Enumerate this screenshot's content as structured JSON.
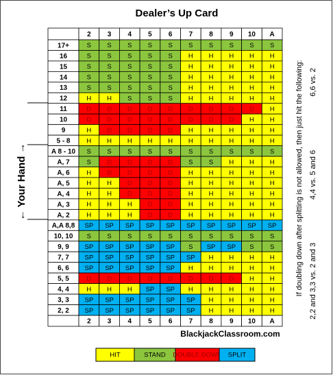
{
  "title": "Dealer’s Up Card",
  "axis_label": "← Your Hand →",
  "columns": [
    "2",
    "3",
    "4",
    "5",
    "6",
    "7",
    "8",
    "9",
    "10",
    "A"
  ],
  "rows": [
    {
      "hand": "17+",
      "cells": [
        "S",
        "S",
        "S",
        "S",
        "S",
        "S",
        "S",
        "S",
        "S",
        "S"
      ]
    },
    {
      "hand": "16",
      "cells": [
        "S",
        "S",
        "S",
        "S",
        "S",
        "H",
        "H",
        "H",
        "H",
        "H"
      ]
    },
    {
      "hand": "15",
      "cells": [
        "S",
        "S",
        "S",
        "S",
        "S",
        "H",
        "H",
        "H",
        "H",
        "H"
      ]
    },
    {
      "hand": "14",
      "cells": [
        "S",
        "S",
        "S",
        "S",
        "S",
        "H",
        "H",
        "H",
        "H",
        "H"
      ]
    },
    {
      "hand": "13",
      "cells": [
        "S",
        "S",
        "S",
        "S",
        "S",
        "H",
        "H",
        "H",
        "H",
        "H"
      ]
    },
    {
      "hand": "12",
      "cells": [
        "H",
        "H",
        "S",
        "S",
        "S",
        "H",
        "H",
        "H",
        "H",
        "H"
      ]
    },
    {
      "hand": "11",
      "cells": [
        "D",
        "D",
        "D",
        "D",
        "D",
        "D",
        "D",
        "D",
        "D",
        "H"
      ]
    },
    {
      "hand": "10",
      "cells": [
        "D",
        "D",
        "D",
        "D",
        "D",
        "D",
        "D",
        "D",
        "H",
        "H"
      ]
    },
    {
      "hand": "9",
      "cells": [
        "H",
        "D",
        "D",
        "D",
        "D",
        "H",
        "H",
        "H",
        "H",
        "H"
      ]
    },
    {
      "hand": "5 - 8",
      "cells": [
        "H",
        "H",
        "H",
        "H",
        "H",
        "H",
        "H",
        "H",
        "H",
        "H"
      ]
    },
    {
      "hand": "A 8 - 10",
      "cells": [
        "S",
        "S",
        "S",
        "S",
        "S",
        "S",
        "S",
        "S",
        "S",
        "S"
      ]
    },
    {
      "hand": "A, 7",
      "cells": [
        "S",
        "D",
        "D",
        "D",
        "D",
        "S",
        "S",
        "H",
        "H",
        "H"
      ]
    },
    {
      "hand": "A, 6",
      "cells": [
        "H",
        "D",
        "D",
        "D",
        "D",
        "H",
        "H",
        "H",
        "H",
        "H"
      ]
    },
    {
      "hand": "A, 5",
      "cells": [
        "H",
        "H",
        "D",
        "D",
        "D",
        "H",
        "H",
        "H",
        "H",
        "H"
      ]
    },
    {
      "hand": "A, 4",
      "cells": [
        "H",
        "H",
        "D",
        "D",
        "D",
        "H",
        "H",
        "H",
        "H",
        "H"
      ]
    },
    {
      "hand": "A, 3",
      "cells": [
        "H",
        "H",
        "H",
        "D",
        "D",
        "H",
        "H",
        "H",
        "H",
        "H"
      ]
    },
    {
      "hand": "A, 2",
      "cells": [
        "H",
        "H",
        "H",
        "D",
        "D",
        "H",
        "H",
        "H",
        "H",
        "H"
      ]
    },
    {
      "hand": "A,A 8,8",
      "cells": [
        "SP",
        "SP",
        "SP",
        "SP",
        "SP",
        "SP",
        "SP",
        "SP",
        "SP",
        "SP"
      ]
    },
    {
      "hand": "10, 10",
      "cells": [
        "S",
        "S",
        "S",
        "S",
        "S",
        "S",
        "S",
        "S",
        "S",
        "S"
      ]
    },
    {
      "hand": "9, 9",
      "cells": [
        "SP",
        "SP",
        "SP",
        "SP",
        "SP",
        "S",
        "SP",
        "SP",
        "S",
        "S"
      ]
    },
    {
      "hand": "7, 7",
      "cells": [
        "SP",
        "SP",
        "SP",
        "SP",
        "SP",
        "SP",
        "H",
        "H",
        "H",
        "H"
      ]
    },
    {
      "hand": "6, 6",
      "cells": [
        "SP",
        "SP",
        "SP",
        "SP",
        "SP",
        "H",
        "H",
        "H",
        "H",
        "H"
      ]
    },
    {
      "hand": "5, 5",
      "cells": [
        "D",
        "D",
        "D",
        "D",
        "D",
        "D",
        "D",
        "D",
        "H",
        "H"
      ]
    },
    {
      "hand": "4, 4",
      "cells": [
        "H",
        "H",
        "H",
        "SP",
        "SP",
        "H",
        "H",
        "H",
        "H",
        "H"
      ]
    },
    {
      "hand": "3, 3",
      "cells": [
        "SP",
        "SP",
        "SP",
        "SP",
        "SP",
        "SP",
        "H",
        "H",
        "H",
        "H"
      ]
    },
    {
      "hand": "2, 2",
      "cells": [
        "SP",
        "SP",
        "SP",
        "SP",
        "SP",
        "SP",
        "H",
        "H",
        "H",
        "H"
      ]
    }
  ],
  "site": "BlackjackClassroom.com",
  "note": "If doubling down after splitting is not allowed, then just hit the following:",
  "note_items": [
    "2,2 and 3,3 vs. 2 and 3",
    "4,4 vs. 5 and 6",
    "6,6 vs. 2"
  ],
  "legend": [
    {
      "label": "HIT",
      "code": "H",
      "color": "#ffff00",
      "text_color": "#000000"
    },
    {
      "label": "STAND",
      "code": "S",
      "color": "#8cc63e",
      "text_color": "#000000"
    },
    {
      "label": "DOUBLE DOWN",
      "code": "D",
      "color": "#ff0000",
      "text_color": "#a00000"
    },
    {
      "label": "SPLIT",
      "code": "SP",
      "color": "#00b0f0",
      "text_color": "#000000"
    }
  ]
}
